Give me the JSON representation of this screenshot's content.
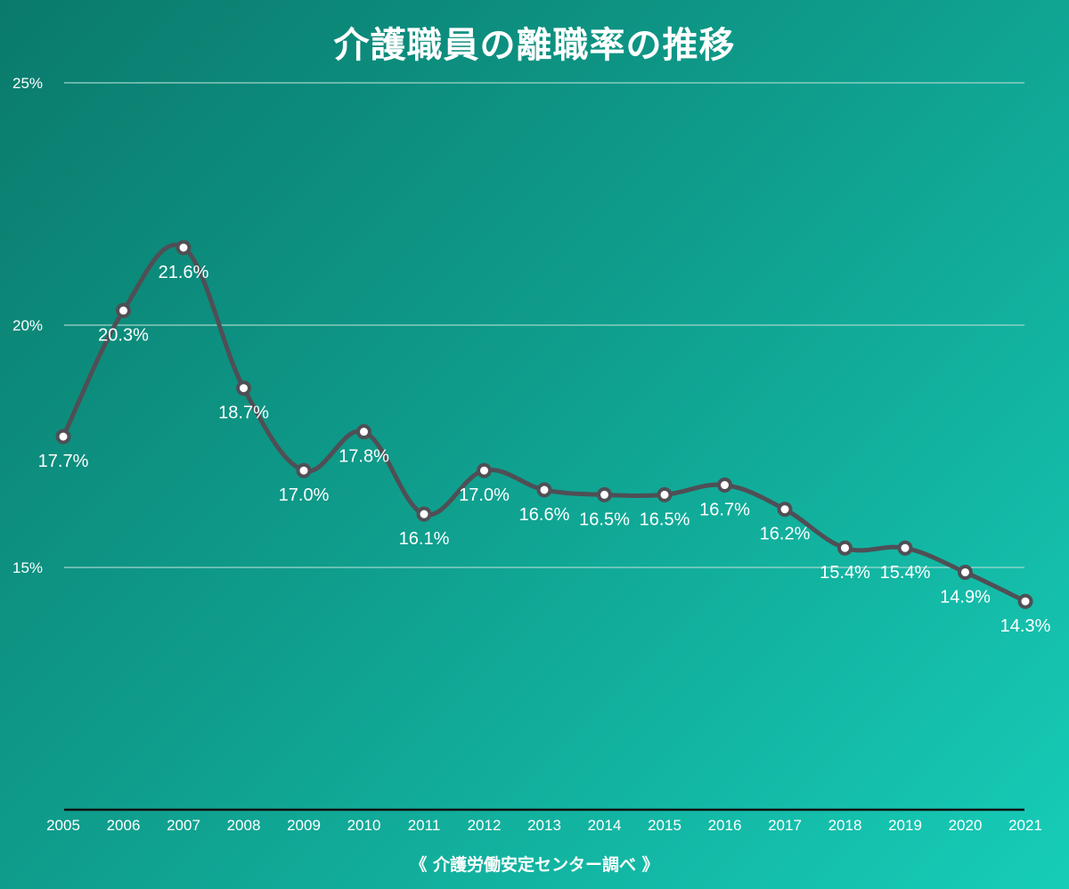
{
  "chart_data": {
    "type": "line",
    "title": "介護職員の離職率の推移",
    "source": "《 介護労働安定センター調べ 》",
    "categories": [
      "2005",
      "2006",
      "2007",
      "2008",
      "2009",
      "2010",
      "2011",
      "2012",
      "2013",
      "2014",
      "2015",
      "2016",
      "2017",
      "2018",
      "2019",
      "2020",
      "2021"
    ],
    "values": [
      17.7,
      20.3,
      21.6,
      18.7,
      17.0,
      17.8,
      16.1,
      17.0,
      16.6,
      16.5,
      16.5,
      16.7,
      16.2,
      15.4,
      15.4,
      14.9,
      14.3
    ],
    "data_labels": [
      "17.7%",
      "20.3%",
      "21.6%",
      "18.7%",
      "17.0%",
      "17.8%",
      "16.1%",
      "17.0%",
      "16.6%",
      "16.5%",
      "16.5%",
      "16.7%",
      "16.2%",
      "15.4%",
      "15.4%",
      "14.9%",
      "14.3%"
    ],
    "yticks": [
      {
        "value": 15,
        "label": "15%"
      },
      {
        "value": 20,
        "label": "20%"
      },
      {
        "value": 25,
        "label": "25%"
      }
    ],
    "ylim": [
      10,
      25
    ],
    "grid": true,
    "colors": {
      "line": "#4f4f55",
      "marker_fill": "#ffffff",
      "grid": "#a8d8d0",
      "axis": "#111111"
    }
  }
}
